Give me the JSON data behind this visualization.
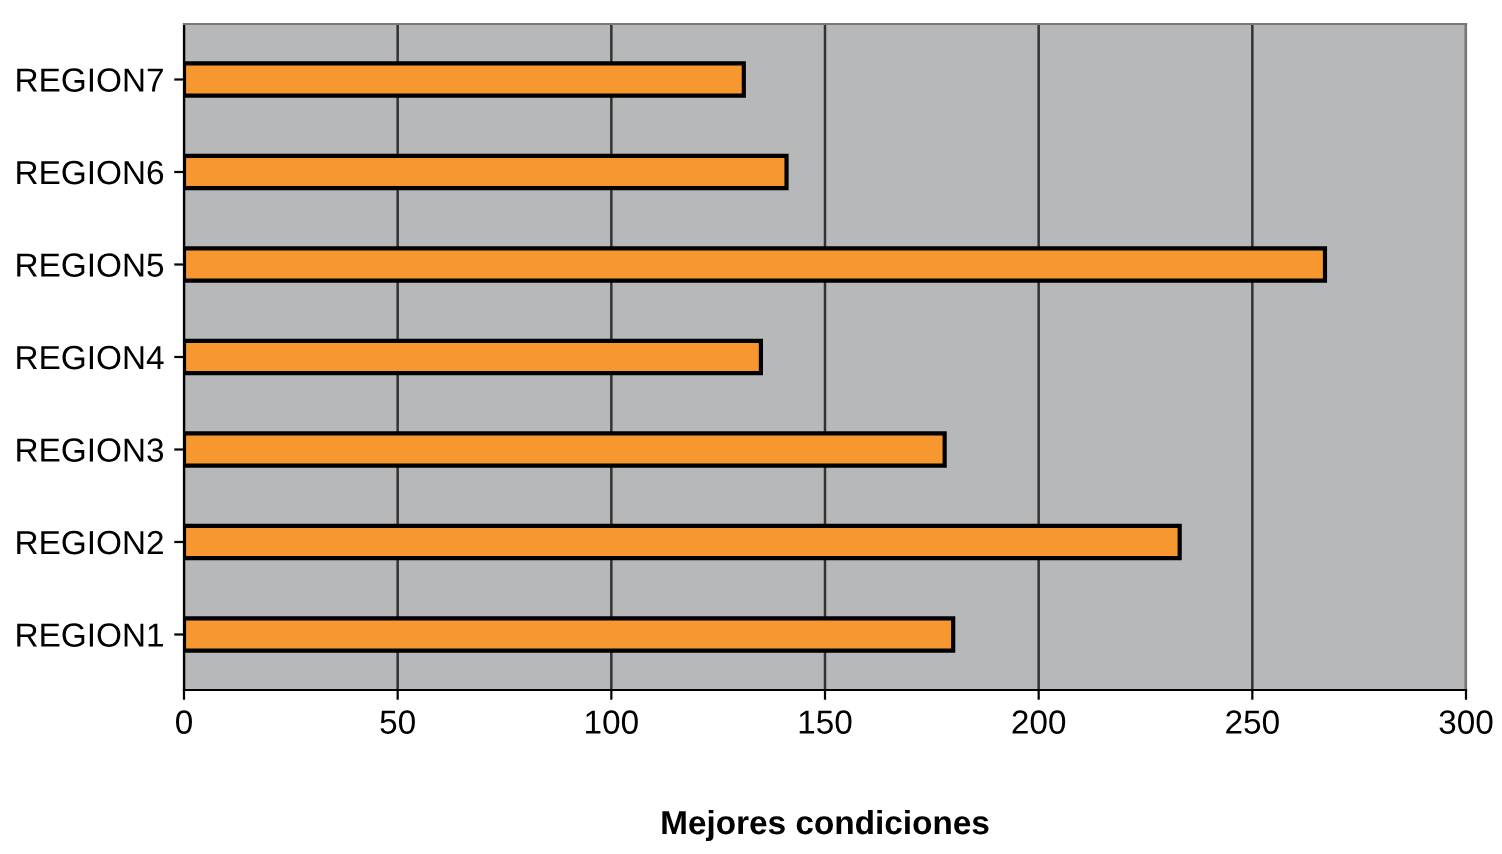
{
  "chart_data": {
    "type": "bar",
    "orientation": "horizontal",
    "xlabel": "Mejores condiciones",
    "categories": [
      "REGION7",
      "REGION6",
      "REGION5",
      "REGION4",
      "REGION3",
      "REGION2",
      "REGION1"
    ],
    "values": [
      131,
      141,
      267,
      135,
      178,
      233,
      180
    ],
    "color": "#f7972f",
    "xlim": [
      0,
      300
    ],
    "xticks": [
      0,
      50,
      100,
      150,
      200,
      250,
      300
    ],
    "grid": "x"
  }
}
